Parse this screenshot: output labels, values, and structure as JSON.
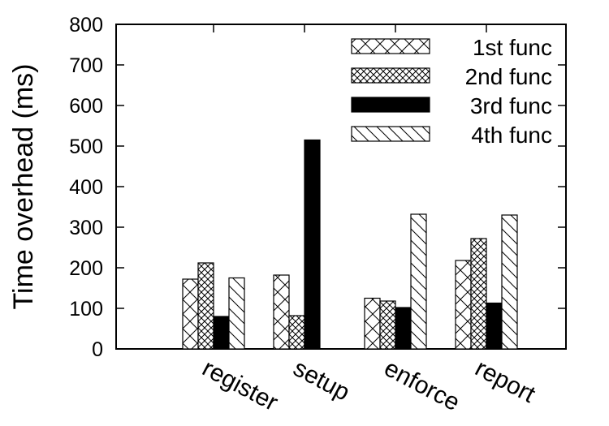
{
  "chart_data": {
    "type": "bar",
    "title": "",
    "xlabel": "",
    "ylabel": "Time overhead (ms)",
    "ylim": [
      0,
      800
    ],
    "yticks": [
      0,
      100,
      200,
      300,
      400,
      500,
      600,
      700,
      800
    ],
    "categories": [
      "register",
      "setup",
      "enforce",
      "report"
    ],
    "series": [
      {
        "name": "1st func",
        "pattern": "crosshatch",
        "values": [
          172,
          182,
          125,
          218
        ]
      },
      {
        "name": "2nd func",
        "pattern": "fine-crosshatch",
        "values": [
          212,
          82,
          118,
          272
        ]
      },
      {
        "name": "3rd func",
        "pattern": "solid-black",
        "values": [
          80,
          515,
          102,
          113
        ]
      },
      {
        "name": "4th func",
        "pattern": "diagonal-lines",
        "values": [
          175,
          0,
          332,
          330
        ]
      }
    ],
    "legend_position": "top-right",
    "grid": false
  }
}
